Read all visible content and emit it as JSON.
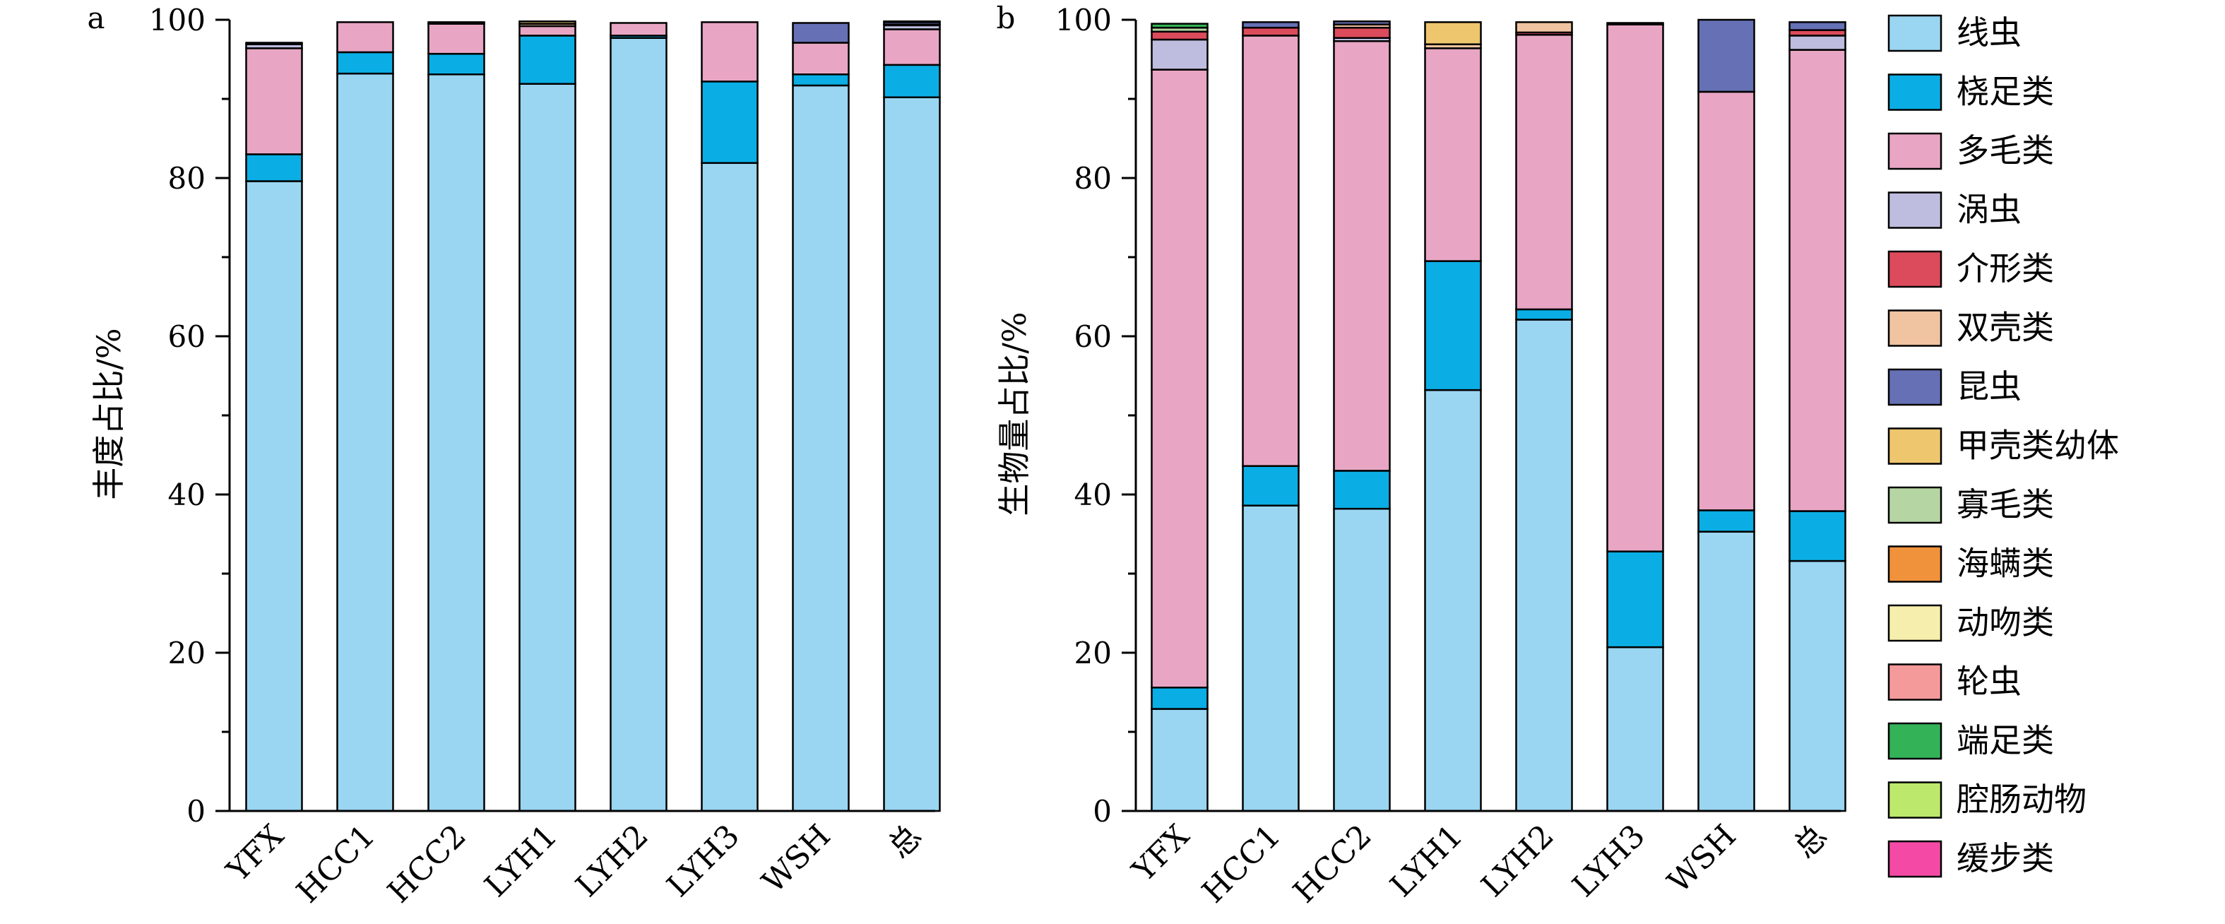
{
  "categories_meta": [
    {
      "name": "线虫",
      "color": "#9ad6f2"
    },
    {
      "name": "桡足类",
      "color": "#0aaee4"
    },
    {
      "name": "多毛类",
      "color": "#e8a6c4"
    },
    {
      "name": "涡虫",
      "color": "#bebddf"
    },
    {
      "name": "介形类",
      "color": "#dc4b5b"
    },
    {
      "name": "双壳类",
      "color": "#f0c4a0"
    },
    {
      "name": "昆虫",
      "color": "#6670b4"
    },
    {
      "name": "甲壳类幼体",
      "color": "#eec66e"
    },
    {
      "name": "寡毛类",
      "color": "#b5d6a3"
    },
    {
      "name": "海螨类",
      "color": "#f0923c"
    },
    {
      "name": "动吻类",
      "color": "#f6eeac"
    },
    {
      "name": "轮虫",
      "color": "#f59a9a"
    },
    {
      "name": "端足类",
      "color": "#33b257"
    },
    {
      "name": "腔肠动物",
      "color": "#bce86c"
    },
    {
      "name": "缓步类",
      "color": "#f44aa6"
    }
  ],
  "chart_data": [
    {
      "type": "bar",
      "stacked": true,
      "panel_label": "a",
      "ylabel": "丰度占比/%",
      "ylim": [
        0,
        100
      ],
      "yticks": [
        0,
        20,
        40,
        60,
        80,
        100
      ],
      "categories": [
        "YFX",
        "HCC1",
        "HCC2",
        "LYH1",
        "LYH2",
        "LYH3",
        "WSH",
        "总"
      ],
      "series": [
        {
          "name": "线虫",
          "values": [
            79.6,
            93.2,
            93.1,
            91.9,
            97.7,
            81.9,
            91.7,
            90.2
          ]
        },
        {
          "name": "桡足类",
          "values": [
            3.4,
            2.7,
            2.6,
            6.1,
            0.3,
            10.3,
            1.4,
            4.1
          ]
        },
        {
          "name": "多毛类",
          "values": [
            13.4,
            3.8,
            3.8,
            1.2,
            1.6,
            7.5,
            4.0,
            4.5
          ]
        },
        {
          "name": "涡虫",
          "values": [
            0.5,
            0.0,
            0.0,
            0.0,
            0.0,
            0.0,
            0.0,
            0.5
          ]
        },
        {
          "name": "介形类",
          "values": [
            0.2,
            0.0,
            0.2,
            0.0,
            0.0,
            0.0,
            0.0,
            0.1
          ]
        },
        {
          "name": "双壳类",
          "values": [
            0.0,
            0.0,
            0.0,
            0.3,
            0.0,
            0.0,
            0.0,
            0.0
          ]
        },
        {
          "name": "昆虫",
          "values": [
            0.0,
            0.0,
            0.0,
            0.0,
            0.0,
            0.0,
            2.5,
            0.3
          ]
        },
        {
          "name": "甲壳类幼体",
          "values": [
            0.0,
            0.0,
            0.0,
            0.3,
            0.0,
            0.0,
            0.0,
            0.1
          ]
        },
        {
          "name": "寡毛类",
          "values": [
            0.0,
            0.0,
            0.0,
            0.0,
            0.0,
            0.0,
            0.0,
            0.0
          ]
        },
        {
          "name": "海螨类",
          "values": [
            0.0,
            0.0,
            0.0,
            0.0,
            0.0,
            0.0,
            0.0,
            0.0
          ]
        },
        {
          "name": "动吻类",
          "values": [
            0.0,
            0.0,
            0.0,
            0.0,
            0.0,
            0.0,
            0.0,
            0.0
          ]
        },
        {
          "name": "轮虫",
          "values": [
            0.0,
            0.0,
            0.0,
            0.0,
            0.0,
            0.0,
            0.0,
            0.0
          ]
        },
        {
          "name": "端足类",
          "values": [
            0.0,
            0.0,
            0.0,
            0.0,
            0.0,
            0.0,
            0.0,
            0.0
          ]
        },
        {
          "name": "腔肠动物",
          "values": [
            0.0,
            0.0,
            0.0,
            0.0,
            0.0,
            0.0,
            0.0,
            0.0
          ]
        },
        {
          "name": "缓步类",
          "values": [
            0.0,
            0.0,
            0.0,
            0.0,
            0.0,
            0.0,
            0.0,
            0.0
          ]
        }
      ]
    },
    {
      "type": "bar",
      "stacked": true,
      "panel_label": "b",
      "ylabel": "生物量占比/%",
      "ylim": [
        0,
        100
      ],
      "yticks": [
        0,
        20,
        40,
        60,
        80,
        100
      ],
      "categories": [
        "YFX",
        "HCC1",
        "HCC2",
        "LYH1",
        "LYH2",
        "LYH3",
        "WSH",
        "总"
      ],
      "series": [
        {
          "name": "线虫",
          "values": [
            12.9,
            38.6,
            38.2,
            53.2,
            62.1,
            20.7,
            35.3,
            31.6
          ]
        },
        {
          "name": "桡足类",
          "values": [
            2.7,
            5.0,
            4.8,
            16.3,
            1.3,
            12.1,
            2.7,
            6.3
          ]
        },
        {
          "name": "多毛类",
          "values": [
            78.1,
            54.4,
            54.3,
            26.9,
            34.7,
            66.6,
            52.9,
            58.3
          ]
        },
        {
          "name": "涡虫",
          "values": [
            3.8,
            0.0,
            0.4,
            0.0,
            0.0,
            0.0,
            0.0,
            1.8
          ]
        },
        {
          "name": "介形类",
          "values": [
            1.0,
            1.0,
            1.3,
            0.0,
            0.3,
            0.0,
            0.0,
            0.7
          ]
        },
        {
          "name": "双壳类",
          "values": [
            0.0,
            0.0,
            0.4,
            0.5,
            1.3,
            0.0,
            0.0,
            0.0
          ]
        },
        {
          "name": "昆虫",
          "values": [
            0.0,
            0.7,
            0.4,
            0.0,
            0.0,
            0.2,
            9.1,
            1.0
          ]
        },
        {
          "name": "甲壳类幼体",
          "values": [
            0.0,
            0.0,
            0.0,
            2.8,
            0.0,
            0.0,
            0.0,
            0.0
          ]
        },
        {
          "name": "寡毛类",
          "values": [
            0.5,
            0.0,
            0.0,
            0.0,
            0.0,
            0.0,
            0.0,
            0.0
          ]
        },
        {
          "name": "海螨类",
          "values": [
            0.0,
            0.0,
            0.0,
            0.0,
            0.0,
            0.0,
            0.0,
            0.0
          ]
        },
        {
          "name": "动吻类",
          "values": [
            0.0,
            0.0,
            0.0,
            0.0,
            0.0,
            0.0,
            0.0,
            0.0
          ]
        },
        {
          "name": "轮虫",
          "values": [
            0.0,
            0.0,
            0.0,
            0.0,
            0.0,
            0.0,
            0.0,
            0.0
          ]
        },
        {
          "name": "端足类",
          "values": [
            0.5,
            0.0,
            0.0,
            0.0,
            0.0,
            0.0,
            0.0,
            0.0
          ]
        },
        {
          "name": "腔肠动物",
          "values": [
            0.0,
            0.0,
            0.0,
            0.0,
            0.0,
            0.0,
            0.0,
            0.0
          ]
        },
        {
          "name": "缓步类",
          "values": [
            0.0,
            0.0,
            0.0,
            0.0,
            0.0,
            0.0,
            0.0,
            0.0
          ]
        }
      ]
    }
  ]
}
